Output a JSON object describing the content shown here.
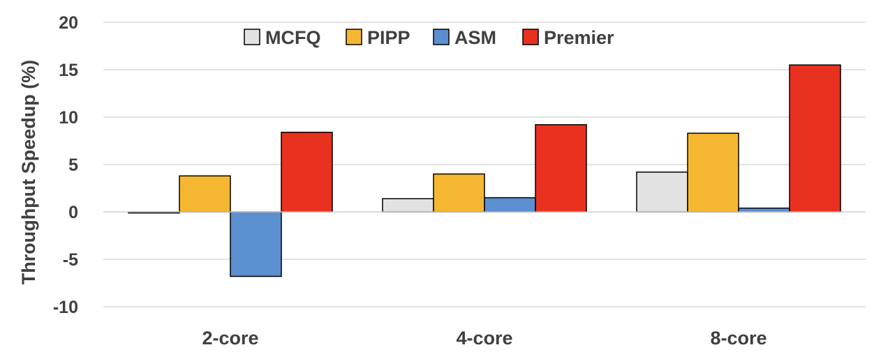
{
  "chart_data": {
    "type": "bar",
    "title": "",
    "xlabel": "",
    "ylabel": "Throughput Speedup (%)",
    "ylim": [
      -10,
      20
    ],
    "yticks": [
      20,
      15,
      10,
      5,
      0,
      -5,
      -10
    ],
    "grid": true,
    "legend_position": "top",
    "categories": [
      "2-core",
      "4-core",
      "8-core"
    ],
    "series": [
      {
        "name": "MCFQ",
        "color": "#e2e2e2",
        "values": [
          -0.1,
          1.4,
          4.2
        ]
      },
      {
        "name": "PIPP",
        "color": "#f5b731",
        "values": [
          3.8,
          4.0,
          8.3
        ]
      },
      {
        "name": "ASM",
        "color": "#5b8fcf",
        "values": [
          -6.8,
          1.5,
          0.4
        ]
      },
      {
        "name": "Premier",
        "color": "#e8321f",
        "values": [
          8.4,
          9.2,
          15.5
        ]
      }
    ]
  }
}
